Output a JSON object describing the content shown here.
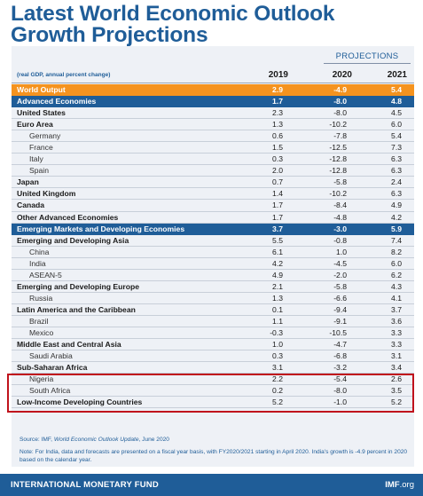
{
  "title": {
    "line1": "Latest World Economic Outlook",
    "line2": "Growth Projections"
  },
  "table": {
    "projections_label": "PROJECTIONS",
    "subtitle": "(real GDP, annual percent change)",
    "years": [
      "2019",
      "2020",
      "2021"
    ],
    "rows": [
      {
        "label": "World Output",
        "values": [
          "2.9",
          "-4.9",
          "5.4"
        ],
        "style": "orange"
      },
      {
        "label": "Advanced Economies",
        "values": [
          "1.7",
          "-8.0",
          "4.8"
        ],
        "style": "blue"
      },
      {
        "label": "United States",
        "values": [
          "2.3",
          "-8.0",
          "4.5"
        ],
        "style": "bold"
      },
      {
        "label": "Euro Area",
        "values": [
          "1.3",
          "-10.2",
          "6.0"
        ],
        "style": "bold"
      },
      {
        "label": "Germany",
        "values": [
          "0.6",
          "-7.8",
          "5.4"
        ],
        "style": "indent"
      },
      {
        "label": "France",
        "values": [
          "1.5",
          "-12.5",
          "7.3"
        ],
        "style": "indent"
      },
      {
        "label": "Italy",
        "values": [
          "0.3",
          "-12.8",
          "6.3"
        ],
        "style": "indent"
      },
      {
        "label": "Spain",
        "values": [
          "2.0",
          "-12.8",
          "6.3"
        ],
        "style": "indent"
      },
      {
        "label": "Japan",
        "values": [
          "0.7",
          "-5.8",
          "2.4"
        ],
        "style": "bold"
      },
      {
        "label": "United Kingdom",
        "values": [
          "1.4",
          "-10.2",
          "6.3"
        ],
        "style": "bold"
      },
      {
        "label": "Canada",
        "values": [
          "1.7",
          "-8.4",
          "4.9"
        ],
        "style": "bold"
      },
      {
        "label": "Other Advanced Economies",
        "values": [
          "1.7",
          "-4.8",
          "4.2"
        ],
        "style": "bold"
      },
      {
        "label": "Emerging Markets and Developing Economies",
        "values": [
          "3.7",
          "-3.0",
          "5.9"
        ],
        "style": "blue"
      },
      {
        "label": "Emerging and Developing Asia",
        "values": [
          "5.5",
          "-0.8",
          "7.4"
        ],
        "style": "bold"
      },
      {
        "label": "China",
        "values": [
          "6.1",
          "1.0",
          "8.2"
        ],
        "style": "indent"
      },
      {
        "label": "India",
        "values": [
          "4.2",
          "-4.5",
          "6.0"
        ],
        "style": "indent"
      },
      {
        "label": "ASEAN-5",
        "values": [
          "4.9",
          "-2.0",
          "6.2"
        ],
        "style": "indent"
      },
      {
        "label": "Emerging and Developing Europe",
        "values": [
          "2.1",
          "-5.8",
          "4.3"
        ],
        "style": "bold"
      },
      {
        "label": "Russia",
        "values": [
          "1.3",
          "-6.6",
          "4.1"
        ],
        "style": "indent"
      },
      {
        "label": "Latin America and the Caribbean",
        "values": [
          "0.1",
          "-9.4",
          "3.7"
        ],
        "style": "bold"
      },
      {
        "label": "Brazil",
        "values": [
          "1.1",
          "-9.1",
          "3.6"
        ],
        "style": "indent"
      },
      {
        "label": "Mexico",
        "values": [
          "-0.3",
          "-10.5",
          "3.3"
        ],
        "style": "indent"
      },
      {
        "label": "Middle East and Central Asia",
        "values": [
          "1.0",
          "-4.7",
          "3.3"
        ],
        "style": "bold"
      },
      {
        "label": "Saudi Arabia",
        "values": [
          "0.3",
          "-6.8",
          "3.1"
        ],
        "style": "indent"
      },
      {
        "label": "Sub-Saharan Africa",
        "values": [
          "3.1",
          "-3.2",
          "3.4"
        ],
        "style": "bold"
      },
      {
        "label": "Nigeria",
        "values": [
          "2.2",
          "-5.4",
          "2.6"
        ],
        "style": "indent"
      },
      {
        "label": "South Africa",
        "values": [
          "0.2",
          "-8.0",
          "3.5"
        ],
        "style": "indent"
      },
      {
        "label": "Low-Income Developing Countries",
        "values": [
          "5.2",
          "-1.0",
          "5.2"
        ],
        "style": "bold"
      }
    ]
  },
  "footer": {
    "source_prefix": "Source: IMF, ",
    "source_title": "World Economic Outlook Update",
    "source_suffix": ", June 2020",
    "note": "Note: For India, data and forecasts are presented on a fiscal year basis, with FY2020/2021 starting in April 2020. India's growth is -4.9 percent in 2020 based on the calendar year."
  },
  "bottom_bar": {
    "org": "INTERNATIONAL MONETARY FUND",
    "site_bold": "IMF",
    "site_rest": ".org"
  },
  "colors": {
    "brand_blue": "#1f5d98",
    "accent_orange": "#f5931f",
    "highlight_red": "#c0121c",
    "sheet_bg": "#eef1f6"
  }
}
